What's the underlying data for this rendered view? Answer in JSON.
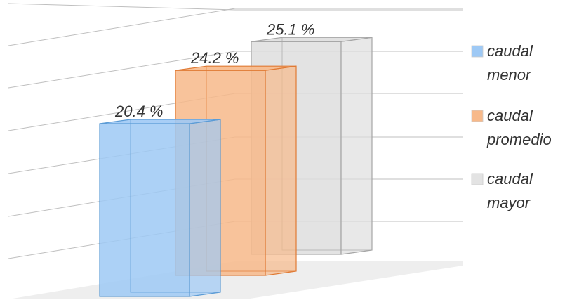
{
  "chart_data": {
    "type": "bar",
    "title": "",
    "categories": [
      "caudal menor",
      "caudal promedio",
      "caudal mayor"
    ],
    "values": [
      20.4,
      24.2,
      25.1
    ],
    "value_labels": [
      "20.4 %",
      "24.2 %",
      "25.1 %"
    ],
    "unit": "%",
    "ylim": [
      0,
      27
    ],
    "grid": true,
    "legend_placement": "right",
    "legend": [
      {
        "line1": "caudal",
        "line2": "menor",
        "color": "#9ec9f5"
      },
      {
        "line1": "caudal",
        "line2": "promedio",
        "color": "#f7b98a"
      },
      {
        "line1": "caudal",
        "line2": "mayor",
        "color": "#e3e3e3"
      }
    ],
    "colors": {
      "menor_fill": "#9ec9f5",
      "menor_edge": "#5b9bd5",
      "promedio_fill": "#f7b98a",
      "promedio_edge": "#e07a34",
      "mayor_fill": "#dedede",
      "mayor_edge": "#a6a6a6",
      "grid": "#bfbfbf"
    }
  }
}
